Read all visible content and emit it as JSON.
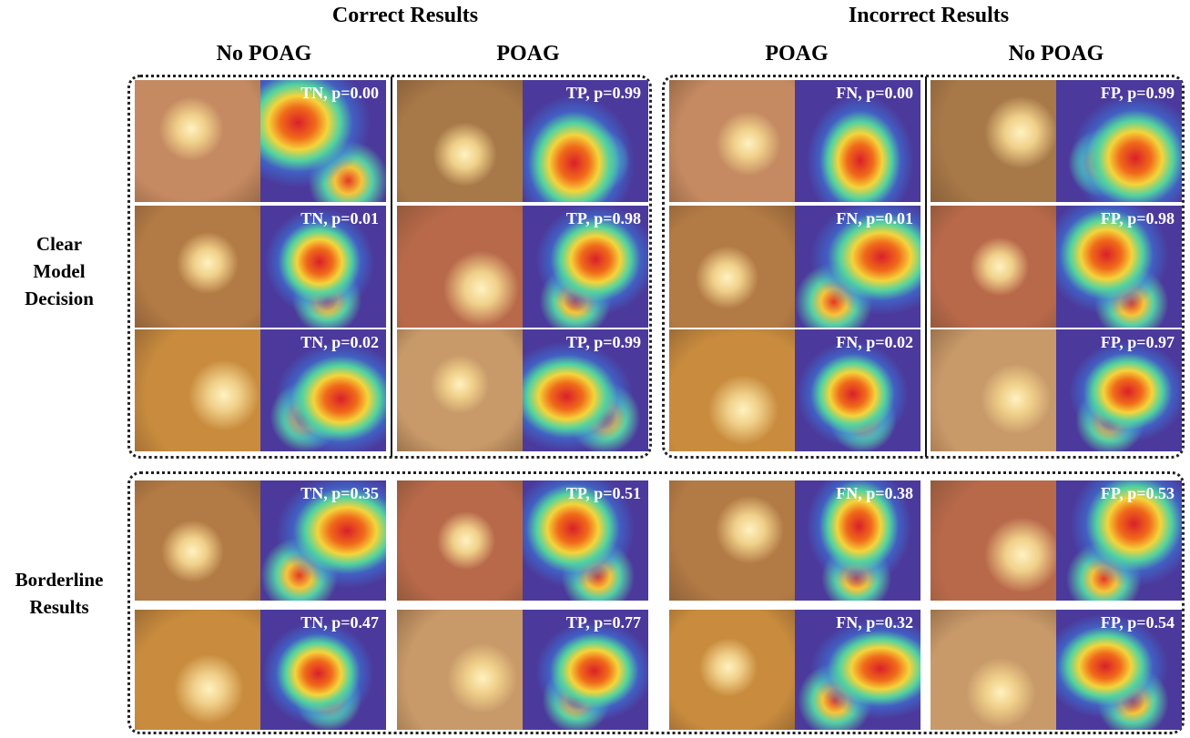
{
  "headers": {
    "groups": [
      "Correct Results",
      "Incorrect Results"
    ],
    "columns": [
      "No POAG",
      "POAG",
      "POAG",
      "No POAG"
    ]
  },
  "sections": [
    {
      "label": "Clear Model Decision",
      "columns": [
        [
          "TN, p=0.00",
          "TN, p=0.01",
          "TN, p=0.02"
        ],
        [
          "TP, p=0.99",
          "TP, p=0.98",
          "TP, p=0.99"
        ],
        [
          "FN, p=0.00",
          "FN, p=0.01",
          "FN, p=0.02"
        ],
        [
          "FP, p=0.99",
          "FP, p=0.98",
          "FP, p=0.97"
        ]
      ]
    },
    {
      "label": "Borderline Results",
      "columns": [
        [
          "TN, p=0.35",
          "TN, p=0.47"
        ],
        [
          "TP, p=0.51",
          "TP, p=0.77"
        ],
        [
          "FN, p=0.38",
          "FN, p=0.32"
        ],
        [
          "FP, p=0.53",
          "FP, p=0.54"
        ]
      ]
    }
  ]
}
